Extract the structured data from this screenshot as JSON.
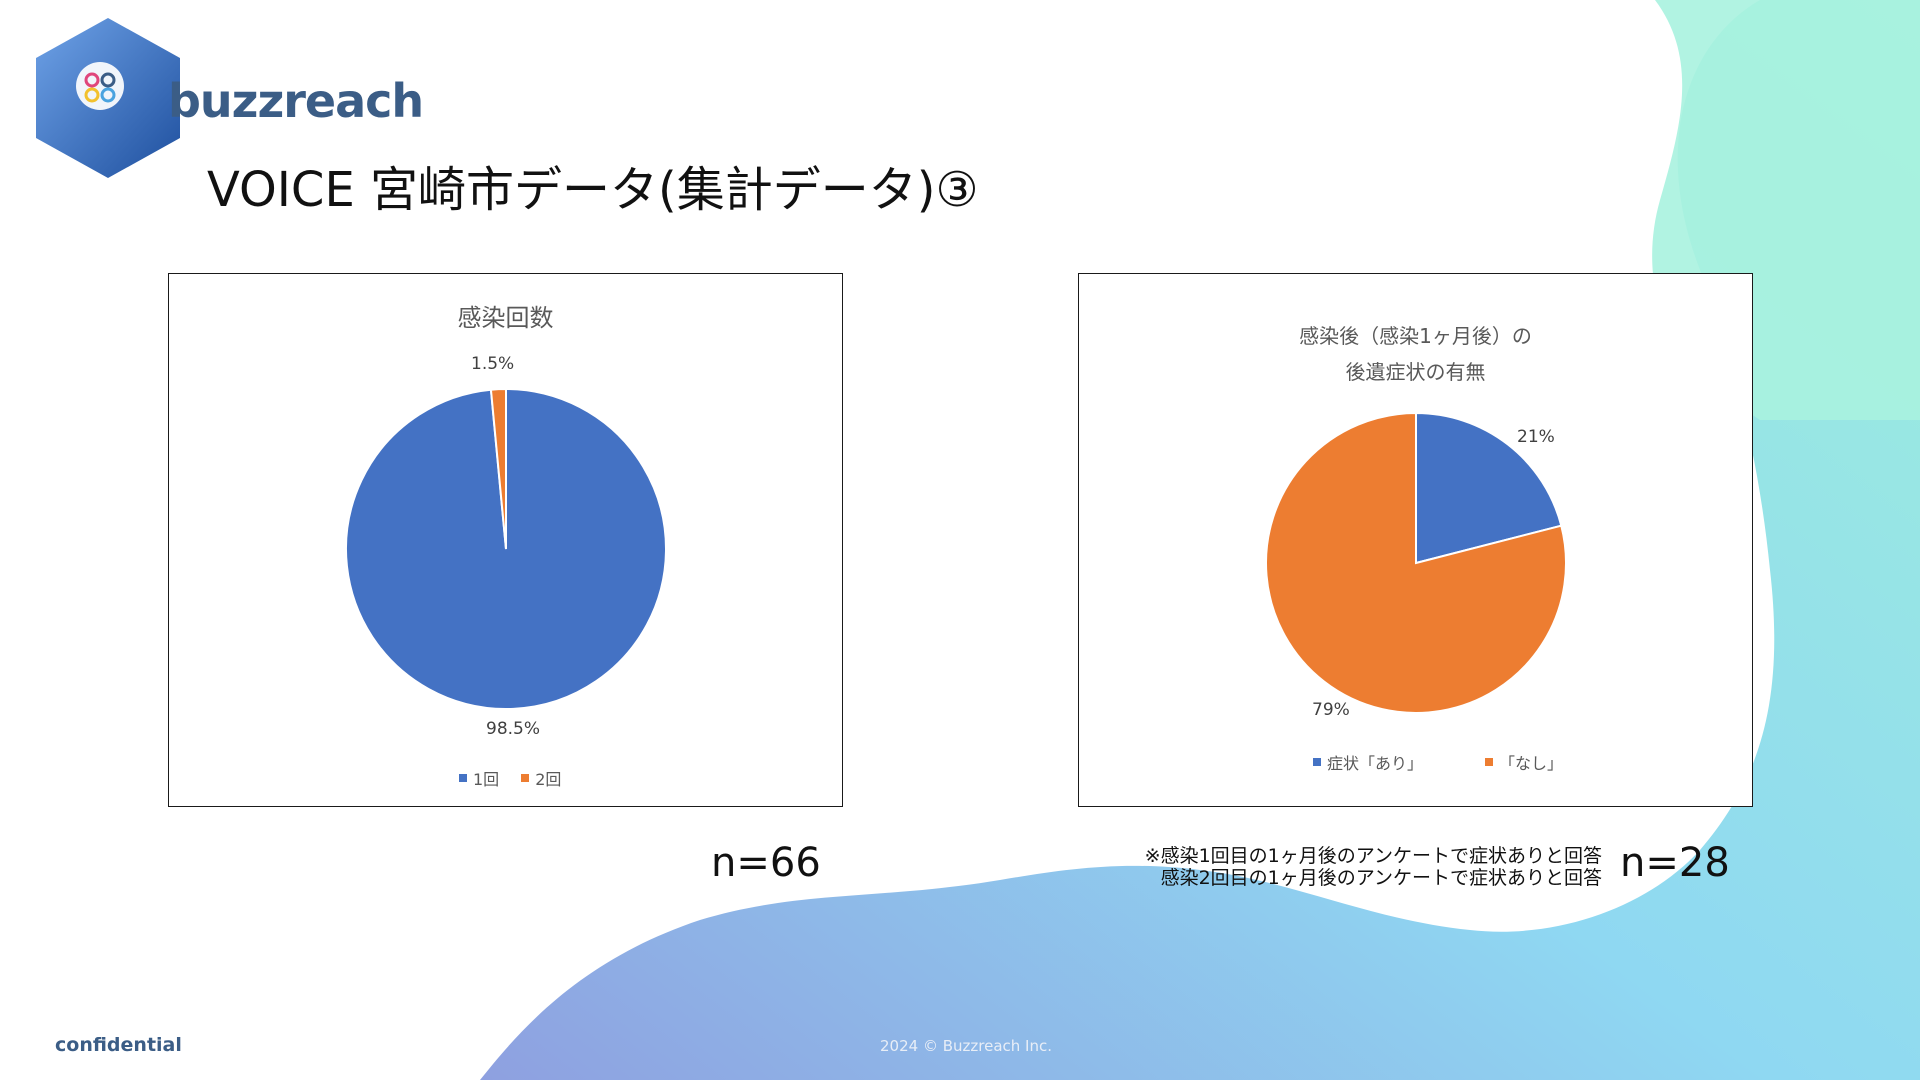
{
  "brand": {
    "logo_text": "buzzreach"
  },
  "slide": {
    "title": "VOICE 宮崎市データ(集計データ)③",
    "footer_left": "confidential",
    "footer_center": "2024 © Buzzreach Inc."
  },
  "charts": {
    "left": {
      "n_label": "n=66"
    },
    "right": {
      "n_label": "n=28",
      "note_line1": "※感染1回目の1ヶ月後のアンケートで症状ありと回答",
      "note_line2": "感染2回目の1ヶ月後のアンケートで症状ありと回答"
    }
  },
  "chart_data": [
    {
      "type": "pie",
      "title": "感染回数",
      "categories": [
        "1回",
        "2回"
      ],
      "values": [
        98.5,
        1.5
      ],
      "labels": [
        "98.5%",
        "1.5%"
      ],
      "colors": [
        "#4472c4",
        "#ed7d31"
      ],
      "legend": "bottom"
    },
    {
      "type": "pie",
      "title": "感染後（感染1ヶ月後）の\n後遺症状の有無",
      "title_line1": "感染後（感染1ヶ月後）の",
      "title_line2": "後遺症状の有無",
      "categories": [
        "症状「あり」",
        "「なし」"
      ],
      "values": [
        21,
        79
      ],
      "labels": [
        "21%",
        "79%"
      ],
      "colors": [
        "#4472c4",
        "#ed7d31"
      ],
      "legend": "bottom"
    }
  ]
}
